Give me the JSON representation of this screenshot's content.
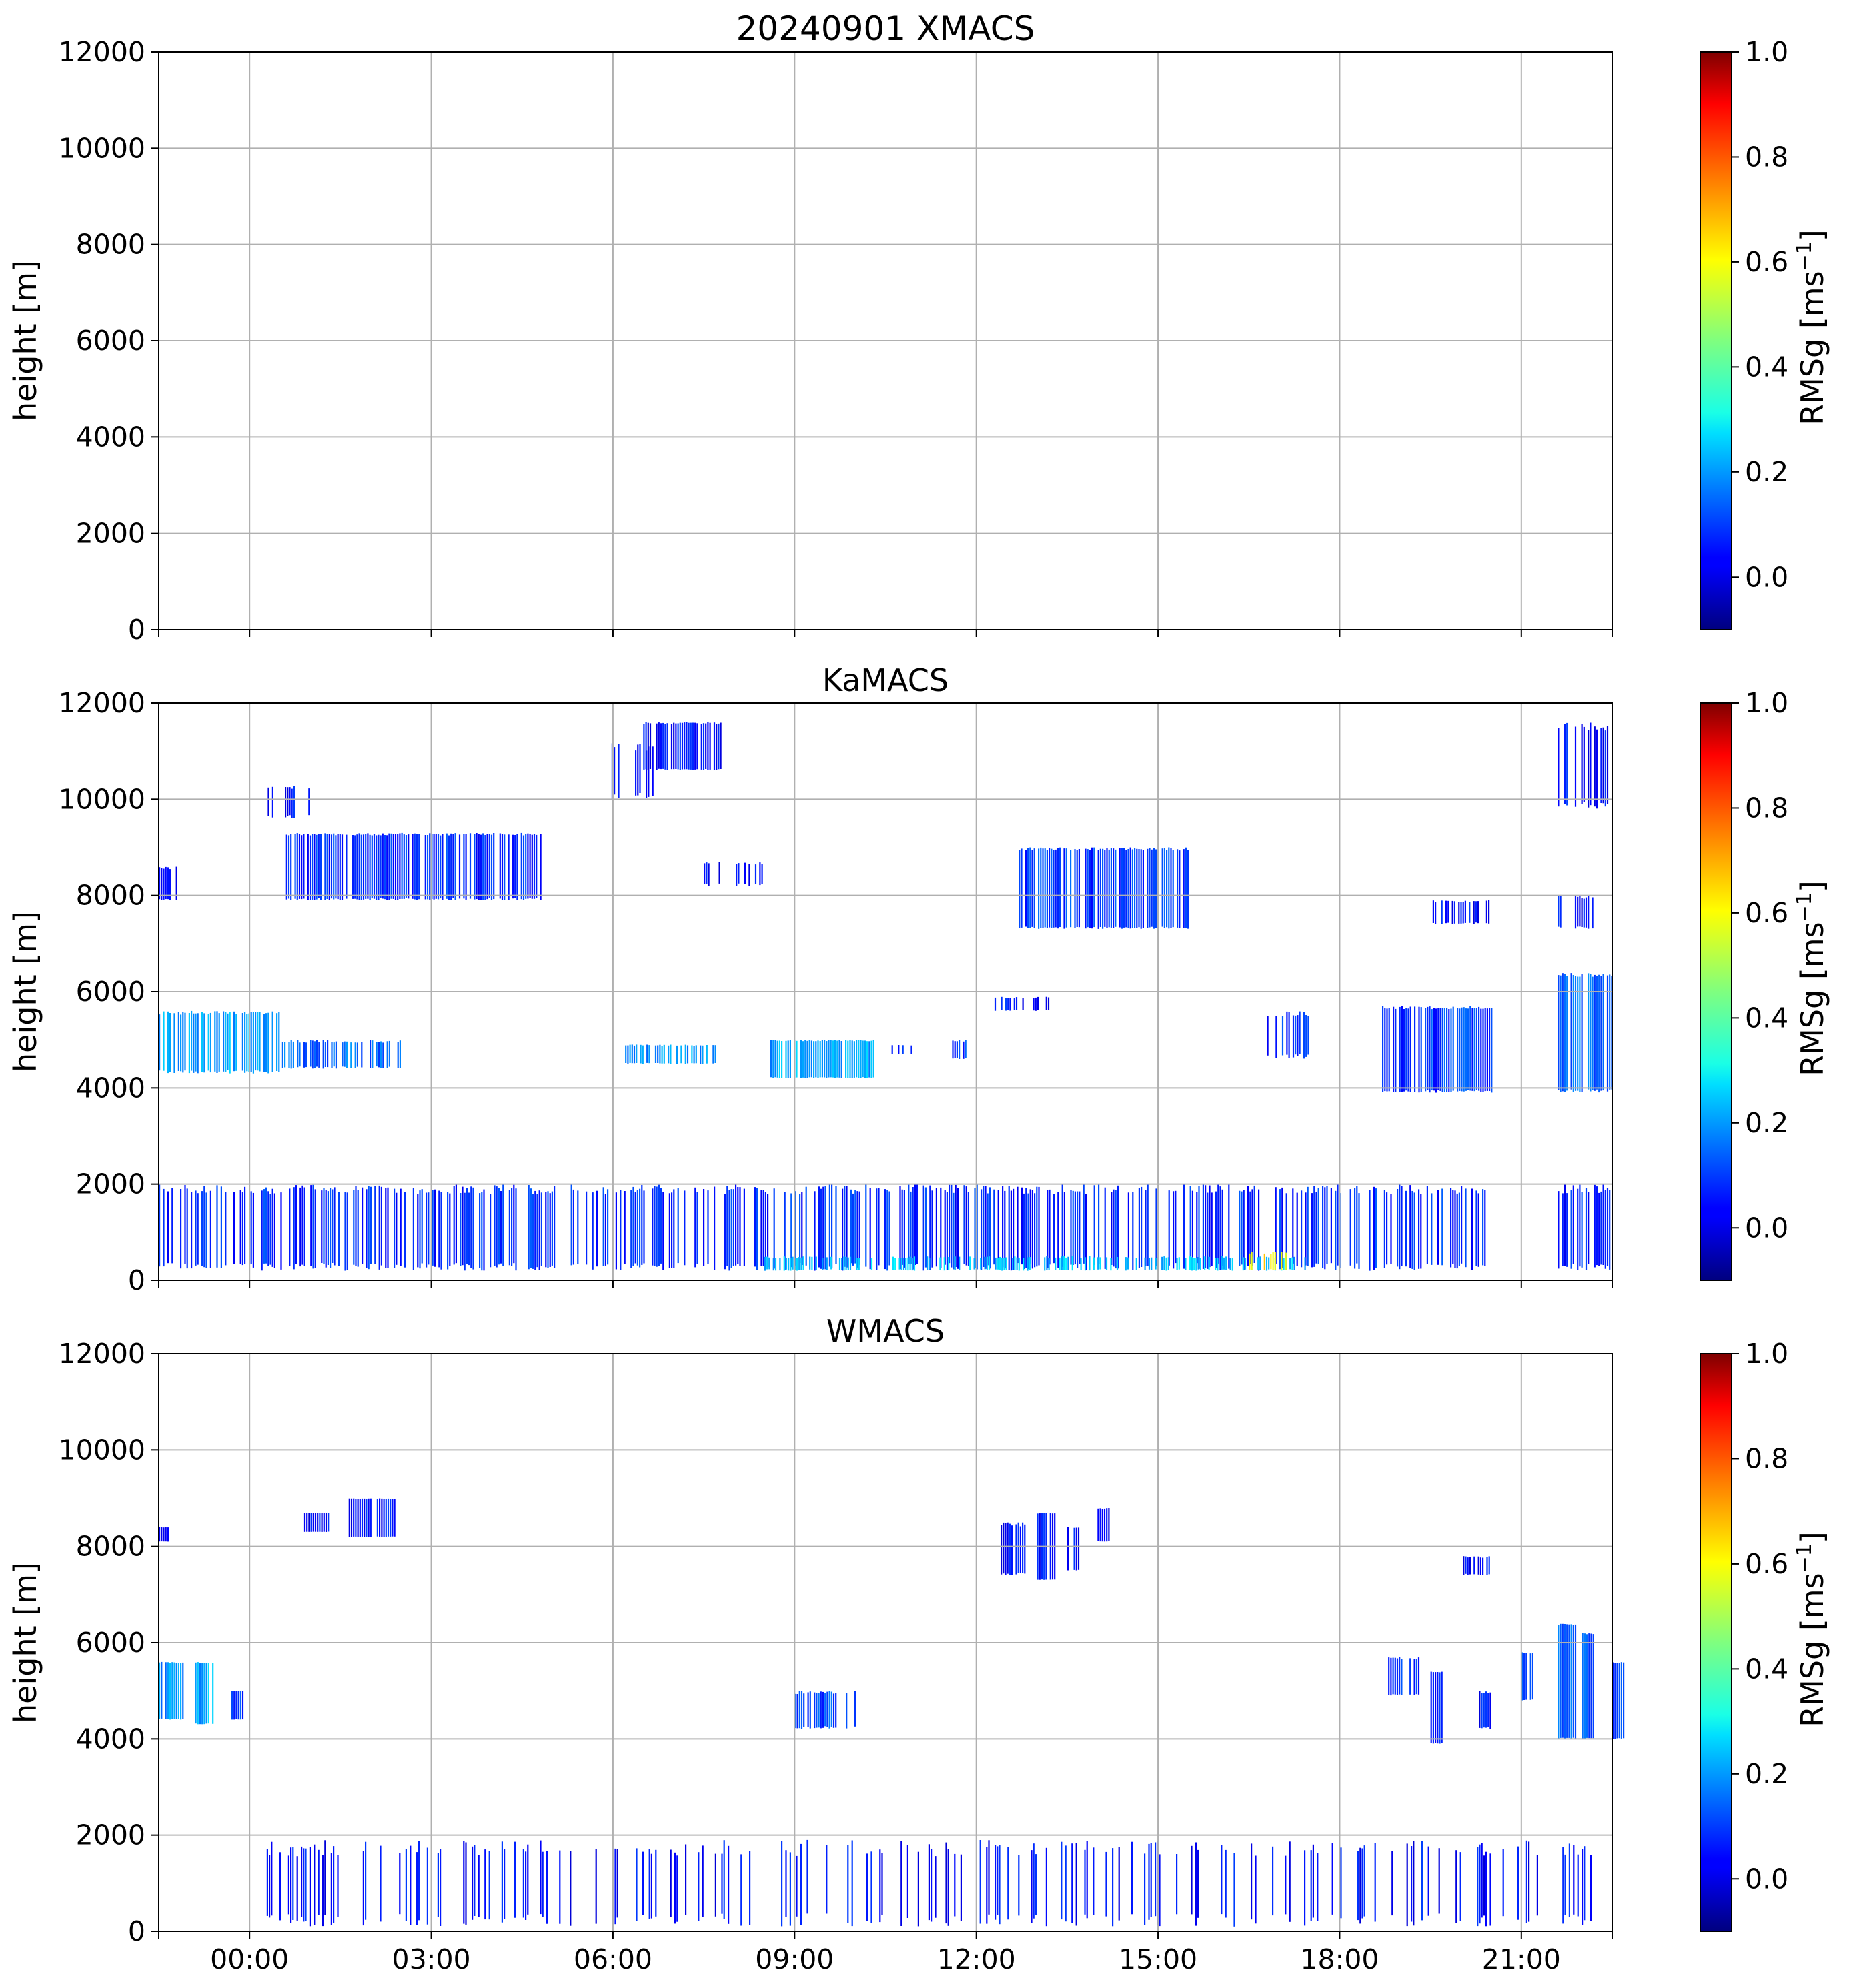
{
  "chart_data": [
    {
      "type": "heatmap",
      "title": "20240901 XMACS",
      "ylabel": "height [m]",
      "ylim": [
        0,
        12000
      ],
      "yticks": [
        0,
        2000,
        4000,
        6000,
        8000,
        10000,
        12000
      ],
      "x_range_hours": [
        -1.5,
        22.5
      ],
      "xticks": [
        "00:00",
        "03:00",
        "06:00",
        "09:00",
        "12:00",
        "15:00",
        "18:00",
        "21:00"
      ],
      "show_xtick_labels": false,
      "grid": true,
      "colorbar": {
        "label": "RMSg [ms-1]",
        "range": [
          -0.1,
          1.0
        ],
        "ticks": [
          "0.0",
          "0.2",
          "0.4",
          "0.6",
          "0.8",
          "1.0"
        ],
        "colormap": "jet"
      },
      "features": []
    },
    {
      "type": "heatmap",
      "title": "KaMACS",
      "ylabel": "height [m]",
      "ylim": [
        0,
        12000
      ],
      "yticks": [
        0,
        2000,
        4000,
        6000,
        8000,
        10000,
        12000
      ],
      "x_range_hours": [
        -1.5,
        22.5
      ],
      "xticks": [
        "00:00",
        "03:00",
        "06:00",
        "09:00",
        "12:00",
        "15:00",
        "18:00",
        "21:00"
      ],
      "show_xtick_labels": false,
      "grid": true,
      "colorbar": {
        "label": "RMSg [ms-1]",
        "range": [
          -0.1,
          1.0
        ],
        "ticks": [
          "0.0",
          "0.2",
          "0.4",
          "0.6",
          "0.8",
          "1.0"
        ],
        "colormap": "jet"
      },
      "features": [
        {
          "t0": -1.5,
          "t1": 20.5,
          "h0": 200,
          "h1": 2000,
          "density": 0.55,
          "value": 0.08
        },
        {
          "t0": 21.6,
          "t1": 22.5,
          "h0": 200,
          "h1": 2000,
          "density": 0.55,
          "value": 0.08
        },
        {
          "t0": 8.5,
          "t1": 17.5,
          "h0": 200,
          "h1": 500,
          "density": 0.5,
          "value": 0.25
        },
        {
          "t0": 16.5,
          "t1": 17.1,
          "h0": 200,
          "h1": 600,
          "density": 0.5,
          "value": 0.6
        },
        {
          "t0": -1.5,
          "t1": 0.5,
          "h0": 4300,
          "h1": 5600,
          "density": 0.75,
          "value": 0.22
        },
        {
          "t0": 0.5,
          "t1": 2.5,
          "h0": 4400,
          "h1": 5000,
          "density": 0.6,
          "value": 0.15
        },
        {
          "t0": 6.2,
          "t1": 7.8,
          "h0": 4500,
          "h1": 4900,
          "density": 0.75,
          "value": 0.2
        },
        {
          "t0": 8.6,
          "t1": 10.3,
          "h0": 4200,
          "h1": 5000,
          "density": 0.85,
          "value": 0.22
        },
        {
          "t0": 10.6,
          "t1": 11.0,
          "h0": 4700,
          "h1": 4900,
          "density": 0.6,
          "value": 0.1
        },
        {
          "t0": 11.6,
          "t1": 11.9,
          "h0": 4600,
          "h1": 5000,
          "density": 0.6,
          "value": 0.1
        },
        {
          "t0": 16.8,
          "t1": 17.5,
          "h0": 4600,
          "h1": 5600,
          "density": 0.5,
          "value": 0.08
        },
        {
          "t0": 18.7,
          "t1": 20.5,
          "h0": 3900,
          "h1": 5700,
          "density": 0.85,
          "value": 0.1
        },
        {
          "t0": 21.6,
          "t1": 22.5,
          "h0": 3900,
          "h1": 6400,
          "density": 0.85,
          "value": 0.15
        },
        {
          "t0": -1.5,
          "t1": -1.2,
          "h0": 7900,
          "h1": 8600,
          "density": 0.7,
          "value": 0.05
        },
        {
          "t0": 0.6,
          "t1": 4.8,
          "h0": 7900,
          "h1": 9300,
          "density": 0.85,
          "value": 0.08
        },
        {
          "t0": 7.5,
          "t1": 8.5,
          "h0": 8200,
          "h1": 8700,
          "density": 0.5,
          "value": 0.05
        },
        {
          "t0": 12.7,
          "t1": 15.5,
          "h0": 7300,
          "h1": 9000,
          "density": 0.85,
          "value": 0.1
        },
        {
          "t0": 19.5,
          "t1": 20.5,
          "h0": 7400,
          "h1": 7900,
          "density": 0.6,
          "value": 0.05
        },
        {
          "t0": 21.6,
          "t1": 22.2,
          "h0": 7300,
          "h1": 8000,
          "density": 0.6,
          "value": 0.05
        },
        {
          "t0": 0.3,
          "t1": 1.0,
          "h0": 9600,
          "h1": 10300,
          "density": 0.5,
          "value": 0.05
        },
        {
          "t0": 5.8,
          "t1": 6.7,
          "h0": 10000,
          "h1": 11200,
          "density": 0.3,
          "value": 0.05
        },
        {
          "t0": 6.5,
          "t1": 7.8,
          "h0": 10600,
          "h1": 11600,
          "density": 0.85,
          "value": 0.05
        },
        {
          "t0": 21.6,
          "t1": 22.5,
          "h0": 9800,
          "h1": 11600,
          "density": 0.6,
          "value": 0.05
        },
        {
          "t0": 12.3,
          "t1": 13.2,
          "h0": 5600,
          "h1": 5900,
          "density": 0.5,
          "value": 0.05
        }
      ]
    },
    {
      "type": "heatmap",
      "title": "WMACS",
      "ylabel": "height [m]",
      "ylim": [
        0,
        12000
      ],
      "yticks": [
        0,
        2000,
        4000,
        6000,
        8000,
        10000,
        12000
      ],
      "x_range_hours": [
        -1.5,
        22.5
      ],
      "xticks": [
        "00:00",
        "03:00",
        "06:00",
        "09:00",
        "12:00",
        "15:00",
        "18:00",
        "21:00"
      ],
      "show_xtick_labels": true,
      "grid": true,
      "colorbar": {
        "label": "RMSg [ms-1]",
        "range": [
          -0.1,
          1.0
        ],
        "ticks": [
          "0.0",
          "0.2",
          "0.4",
          "0.6",
          "0.8",
          "1.0"
        ],
        "colormap": "jet"
      },
      "features": [
        {
          "t0": -1.5,
          "t1": -1.1,
          "h0": 4400,
          "h1": 5600,
          "density": 0.9,
          "value": 0.2
        },
        {
          "t0": -0.9,
          "t1": -0.6,
          "h0": 4300,
          "h1": 5600,
          "density": 0.9,
          "value": 0.22
        },
        {
          "t0": -0.3,
          "t1": -0.1,
          "h0": 4400,
          "h1": 5000,
          "density": 0.9,
          "value": 0.1
        },
        {
          "t0": 0.0,
          "t1": 22.2,
          "h0": 100,
          "h1": 1900,
          "density": 0.25,
          "value": 0.05
        },
        {
          "t0": 9.0,
          "t1": 10.0,
          "h0": 4200,
          "h1": 5000,
          "density": 0.6,
          "value": 0.12
        },
        {
          "t0": 18.8,
          "t1": 19.3,
          "h0": 4900,
          "h1": 5700,
          "density": 0.8,
          "value": 0.1
        },
        {
          "t0": 19.5,
          "t1": 19.7,
          "h0": 3900,
          "h1": 5400,
          "density": 0.95,
          "value": 0.05
        },
        {
          "t0": 20.3,
          "t1": 20.5,
          "h0": 4200,
          "h1": 5000,
          "density": 0.7,
          "value": 0.05
        },
        {
          "t0": 21.0,
          "t1": 21.2,
          "h0": 4800,
          "h1": 5800,
          "density": 0.9,
          "value": 0.1
        },
        {
          "t0": 21.6,
          "t1": 21.9,
          "h0": 4000,
          "h1": 6400,
          "density": 0.95,
          "value": 0.15
        },
        {
          "t0": 22.0,
          "t1": 22.2,
          "h0": 4000,
          "h1": 6200,
          "density": 0.95,
          "value": 0.15
        },
        {
          "t0": 22.5,
          "t1": 22.7,
          "h0": 4000,
          "h1": 5600,
          "density": 0.95,
          "value": 0.1
        },
        {
          "t0": -1.5,
          "t1": -1.35,
          "h0": 8100,
          "h1": 8400,
          "density": 0.9,
          "value": 0.05
        },
        {
          "t0": 0.9,
          "t1": 1.3,
          "h0": 8300,
          "h1": 8700,
          "density": 0.9,
          "value": 0.05
        },
        {
          "t0": 1.6,
          "t1": 2.0,
          "h0": 8200,
          "h1": 9000,
          "density": 0.95,
          "value": 0.05
        },
        {
          "t0": 2.1,
          "t1": 2.4,
          "h0": 8200,
          "h1": 9000,
          "density": 0.95,
          "value": 0.05
        },
        {
          "t0": 12.4,
          "t1": 12.8,
          "h0": 7400,
          "h1": 8500,
          "density": 0.7,
          "value": 0.05
        },
        {
          "t0": 13.0,
          "t1": 13.3,
          "h0": 7300,
          "h1": 8700,
          "density": 0.95,
          "value": 0.05
        },
        {
          "t0": 13.5,
          "t1": 13.7,
          "h0": 7500,
          "h1": 8400,
          "density": 0.9,
          "value": 0.05
        },
        {
          "t0": 14.0,
          "t1": 14.2,
          "h0": 8100,
          "h1": 8800,
          "density": 0.9,
          "value": 0.05
        },
        {
          "t0": 20.0,
          "t1": 20.5,
          "h0": 7400,
          "h1": 7800,
          "density": 0.6,
          "value": 0.05
        }
      ]
    }
  ]
}
